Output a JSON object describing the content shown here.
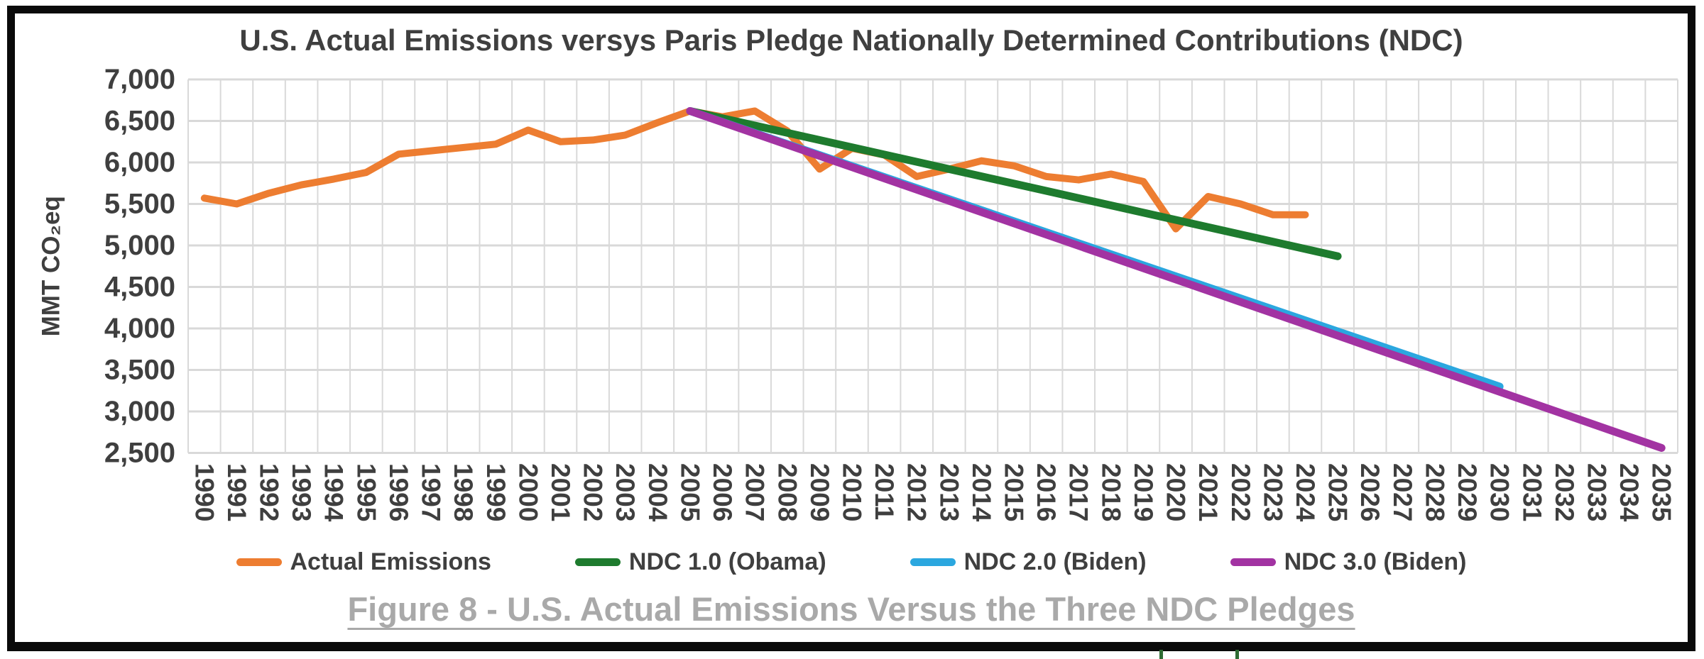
{
  "figure": {
    "caption": "Figure 8 - U.S. Actual Emissions Versus the Three NDC Pledges"
  },
  "chart_data": {
    "type": "line",
    "title": "U.S. Actual Emissions versys Paris Pledge Nationally Determined Contributions (NDC)",
    "ylabel": "MMT CO₂eq",
    "xlabel": "",
    "ylim": [
      2500,
      7000
    ],
    "y_tick_step": 500,
    "y_tick_labels": [
      "7,000",
      "6,500",
      "6,000",
      "5,500",
      "5,000",
      "4,500",
      "4,000",
      "3,500",
      "3,000",
      "2,500"
    ],
    "x_categories": [
      1990,
      1991,
      1992,
      1993,
      1994,
      1995,
      1996,
      1997,
      1998,
      1999,
      2000,
      2001,
      2002,
      2003,
      2004,
      2005,
      2006,
      2007,
      2008,
      2009,
      2010,
      2011,
      2012,
      2013,
      2014,
      2015,
      2016,
      2017,
      2018,
      2019,
      2020,
      2021,
      2022,
      2023,
      2024,
      2025,
      2026,
      2027,
      2028,
      2029,
      2030,
      2031,
      2032,
      2033,
      2034,
      2035
    ],
    "grid": true,
    "gridline_color": "#d9d9d9",
    "legend_position": "bottom",
    "text_color": "#3f3f3f",
    "caption_color": "#a9a9a9",
    "series": [
      {
        "name": "Actual Emissions",
        "color": "#ED7D31",
        "points": [
          [
            1990,
            5570
          ],
          [
            1991,
            5500
          ],
          [
            1992,
            5630
          ],
          [
            1993,
            5730
          ],
          [
            1994,
            5800
          ],
          [
            1995,
            5880
          ],
          [
            1996,
            6100
          ],
          [
            1997,
            6140
          ],
          [
            1998,
            6180
          ],
          [
            1999,
            6220
          ],
          [
            2000,
            6390
          ],
          [
            2001,
            6250
          ],
          [
            2002,
            6270
          ],
          [
            2003,
            6330
          ],
          [
            2004,
            6480
          ],
          [
            2005,
            6620
          ],
          [
            2006,
            6550
          ],
          [
            2007,
            6620
          ],
          [
            2008,
            6380
          ],
          [
            2009,
            5920
          ],
          [
            2010,
            6170
          ],
          [
            2011,
            6090
          ],
          [
            2012,
            5830
          ],
          [
            2013,
            5920
          ],
          [
            2014,
            6020
          ],
          [
            2015,
            5960
          ],
          [
            2016,
            5830
          ],
          [
            2017,
            5790
          ],
          [
            2018,
            5860
          ],
          [
            2019,
            5770
          ],
          [
            2020,
            5200
          ],
          [
            2021,
            5590
          ],
          [
            2022,
            5500
          ],
          [
            2023,
            5370
          ],
          [
            2024,
            5370
          ]
        ]
      },
      {
        "name": "NDC 1.0 (Obama)",
        "color": "#1E7B2E",
        "points": [
          [
            2005,
            6620
          ],
          [
            2025,
            4870
          ]
        ]
      },
      {
        "name": "NDC 2.0 (Biden)",
        "color": "#2BA7DF",
        "points": [
          [
            2005,
            6620
          ],
          [
            2030,
            3300
          ]
        ]
      },
      {
        "name": "NDC 3.0 (Biden)",
        "color": "#A233A2",
        "points": [
          [
            2005,
            6620
          ],
          [
            2035,
            2560
          ]
        ]
      }
    ]
  }
}
